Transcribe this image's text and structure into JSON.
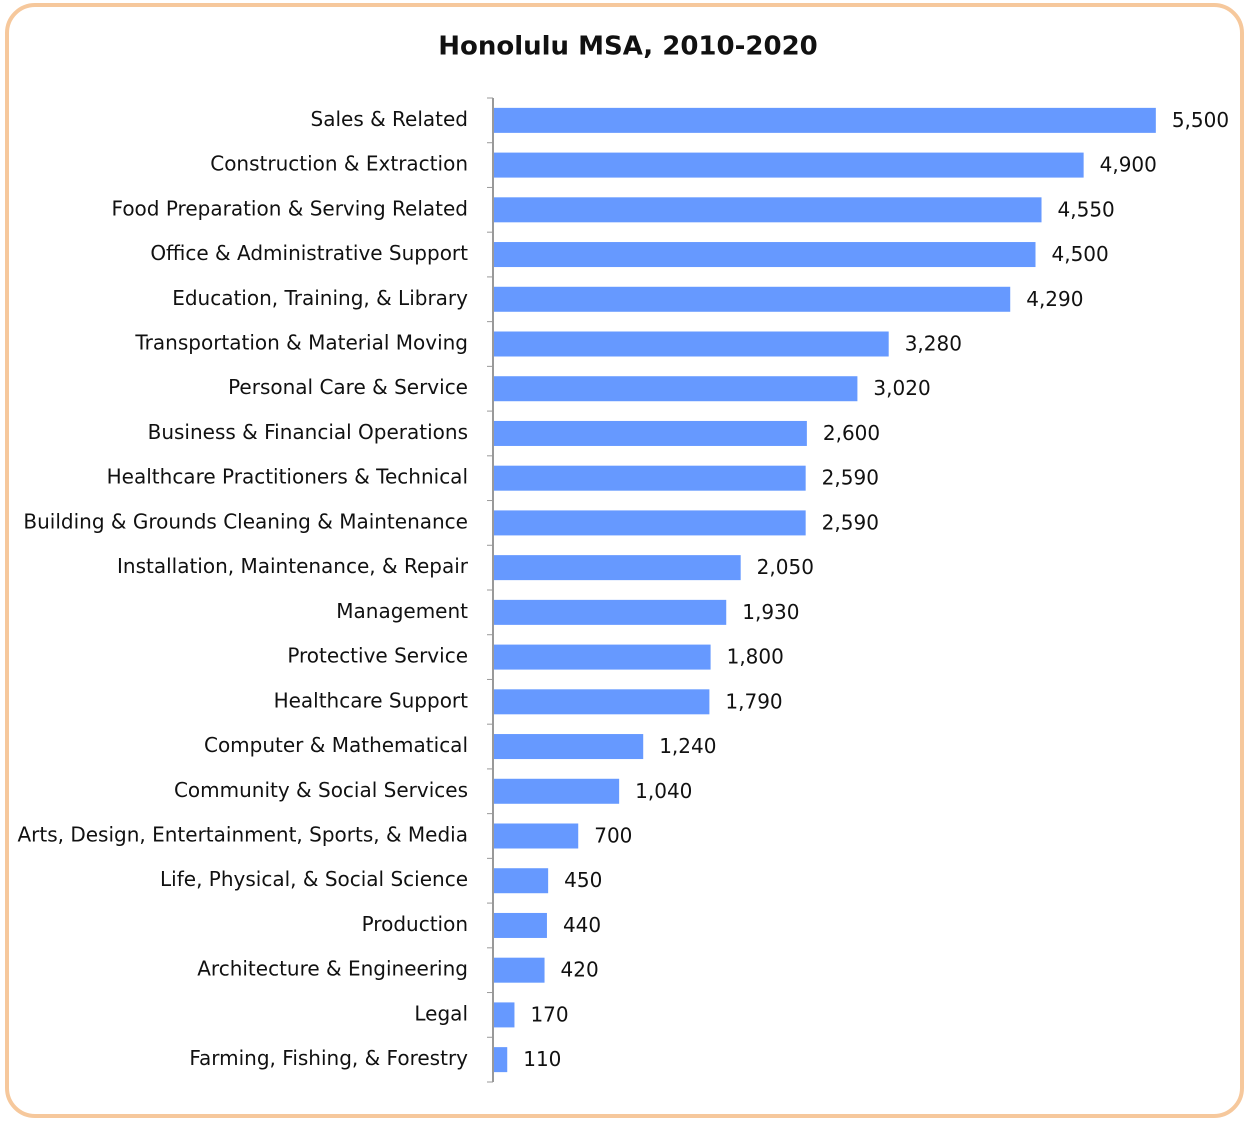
{
  "chart_data": {
    "type": "bar",
    "orientation": "horizontal",
    "title": "Honolulu MSA, 2010-2020",
    "categories": [
      "Sales & Related",
      "Construction & Extraction",
      "Food Preparation & Serving Related",
      "Office & Administrative Support",
      "Education, Training, & Library",
      "Transportation & Material Moving",
      "Personal Care & Service",
      "Business & Financial Operations",
      "Healthcare Practitioners & Technical",
      "Building & Grounds Cleaning & Maintenance",
      "Installation, Maintenance, & Repair",
      "Management",
      "Protective Service",
      "Healthcare Support",
      "Computer & Mathematical",
      "Community & Social Services",
      "Arts, Design, Entertainment, Sports, & Media",
      "Life, Physical, & Social Science",
      "Production",
      "Architecture & Engineering",
      "Legal",
      "Farming, Fishing, & Forestry"
    ],
    "values": [
      5500,
      4900,
      4550,
      4500,
      4290,
      3280,
      3020,
      2600,
      2590,
      2590,
      2050,
      1930,
      1800,
      1790,
      1240,
      1040,
      700,
      450,
      440,
      420,
      170,
      110
    ],
    "value_labels": [
      "5,500",
      "4,900",
      "4,550",
      "4,500",
      "4,290",
      "3,280",
      "3,020",
      "2,600",
      "2,590",
      "2,590",
      "2,050",
      "1,930",
      "1,800",
      "1,790",
      "1,240",
      "1,040",
      "700",
      "450",
      "440",
      "420",
      "170",
      "110"
    ],
    "color": "#6699ff",
    "xlim": [
      0,
      6000
    ]
  }
}
